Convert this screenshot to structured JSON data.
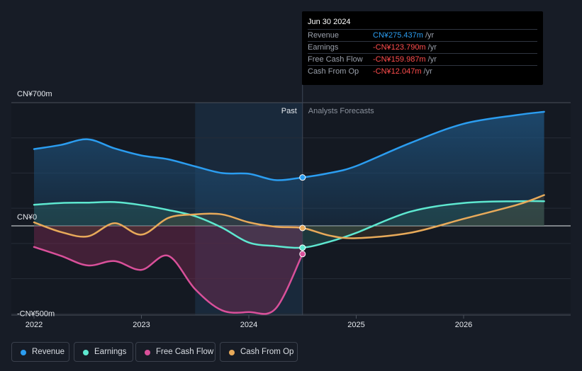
{
  "tooltip": {
    "date": "Jun 30 2024",
    "rows": [
      {
        "label": "Revenue",
        "value": "CN¥275.437m",
        "unit": " /yr",
        "color": "#2b9df0"
      },
      {
        "label": "Earnings",
        "value": "-CN¥123.790m",
        "unit": " /yr",
        "color": "#ff4d4d"
      },
      {
        "label": "Free Cash Flow",
        "value": "-CN¥159.987m",
        "unit": " /yr",
        "color": "#ff4d4d"
      },
      {
        "label": "Cash From Op",
        "value": "-CN¥12.047m",
        "unit": " /yr",
        "color": "#ff4d4d"
      }
    ]
  },
  "legend": [
    {
      "label": "Revenue",
      "color": "#2b9df0"
    },
    {
      "label": "Earnings",
      "color": "#5ee8d0"
    },
    {
      "label": "Free Cash Flow",
      "color": "#d9509a"
    },
    {
      "label": "Cash From Op",
      "color": "#e8aa5a"
    }
  ],
  "chart_data": {
    "type": "line",
    "unit": "CN¥m",
    "ylim": [
      -500,
      700
    ],
    "y_tick_labels": [
      {
        "value": 700,
        "label": "CN¥700m"
      },
      {
        "value": 0,
        "label": "CN¥0"
      },
      {
        "value": -500,
        "label": "-CN¥500m"
      }
    ],
    "x_tick_labels": [
      "2022",
      "2023",
      "2024",
      "2025",
      "2026"
    ],
    "past_label": "Past",
    "forecast_label": "Analysts Forecasts",
    "highlight_start": 2023.5,
    "divider_x": 2024.5,
    "series": [
      {
        "name": "Revenue",
        "color": "#2b9df0",
        "points": [
          [
            2022.0,
            436
          ],
          [
            2022.25,
            460
          ],
          [
            2022.5,
            492
          ],
          [
            2022.75,
            440
          ],
          [
            2023.0,
            400
          ],
          [
            2023.25,
            378
          ],
          [
            2023.5,
            338
          ],
          [
            2023.75,
            300
          ],
          [
            2024.0,
            296
          ],
          [
            2024.25,
            260
          ],
          [
            2024.5,
            275
          ],
          [
            2024.75,
            300
          ],
          [
            2025.0,
            340
          ],
          [
            2025.5,
            470
          ],
          [
            2026.0,
            580
          ],
          [
            2026.5,
            630
          ],
          [
            2026.75,
            648
          ]
        ]
      },
      {
        "name": "Earnings",
        "color": "#5ee8d0",
        "points": [
          [
            2022.0,
            120
          ],
          [
            2022.25,
            130
          ],
          [
            2022.5,
            132
          ],
          [
            2022.75,
            135
          ],
          [
            2023.0,
            118
          ],
          [
            2023.25,
            90
          ],
          [
            2023.5,
            55
          ],
          [
            2023.75,
            -10
          ],
          [
            2024.0,
            -95
          ],
          [
            2024.25,
            -115
          ],
          [
            2024.5,
            -124
          ],
          [
            2024.75,
            -90
          ],
          [
            2025.0,
            -40
          ],
          [
            2025.5,
            80
          ],
          [
            2026.0,
            130
          ],
          [
            2026.5,
            140
          ],
          [
            2026.75,
            140
          ]
        ]
      },
      {
        "name": "Free Cash Flow",
        "color": "#d9509a",
        "points": [
          [
            2022.0,
            -120
          ],
          [
            2022.25,
            -170
          ],
          [
            2022.5,
            -225
          ],
          [
            2022.75,
            -200
          ],
          [
            2023.0,
            -250
          ],
          [
            2023.25,
            -170
          ],
          [
            2023.5,
            -360
          ],
          [
            2023.75,
            -480
          ],
          [
            2024.0,
            -490
          ],
          [
            2024.25,
            -470
          ],
          [
            2024.5,
            -160
          ]
        ]
      },
      {
        "name": "Cash From Op",
        "color": "#e8aa5a",
        "points": [
          [
            2022.0,
            20
          ],
          [
            2022.25,
            -35
          ],
          [
            2022.5,
            -60
          ],
          [
            2022.75,
            15
          ],
          [
            2023.0,
            -50
          ],
          [
            2023.25,
            45
          ],
          [
            2023.5,
            65
          ],
          [
            2023.75,
            65
          ],
          [
            2024.0,
            20
          ],
          [
            2024.25,
            -5
          ],
          [
            2024.5,
            -12
          ],
          [
            2024.75,
            -55
          ],
          [
            2025.0,
            -70
          ],
          [
            2025.5,
            -40
          ],
          [
            2026.0,
            40
          ],
          [
            2026.5,
            120
          ],
          [
            2026.75,
            175
          ]
        ]
      }
    ]
  }
}
